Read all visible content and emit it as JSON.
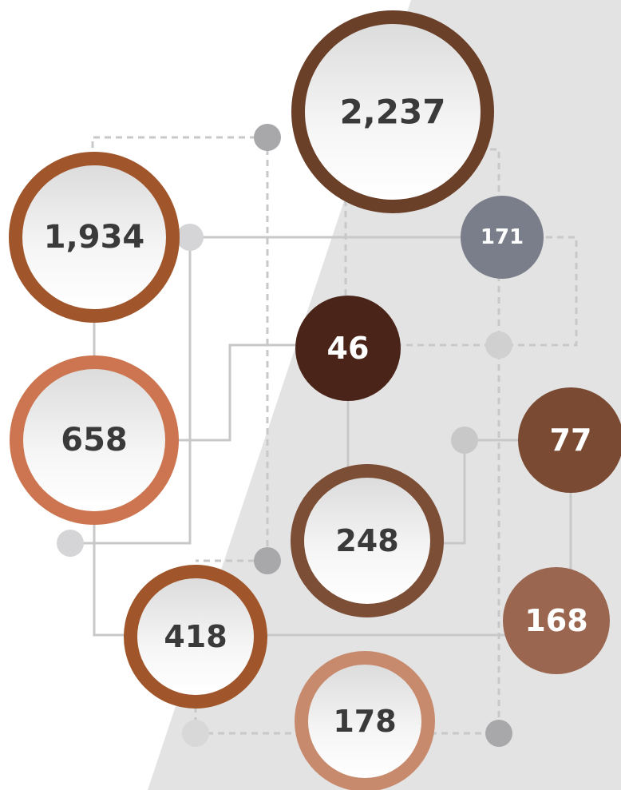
{
  "nodes": [
    {
      "label": "2,237"
    },
    {
      "label": "1,934"
    },
    {
      "label": "658"
    },
    {
      "label": "46"
    },
    {
      "label": "171"
    },
    {
      "label": "77"
    },
    {
      "label": "248"
    },
    {
      "label": "418"
    },
    {
      "label": "168"
    },
    {
      "label": "178"
    }
  ]
}
